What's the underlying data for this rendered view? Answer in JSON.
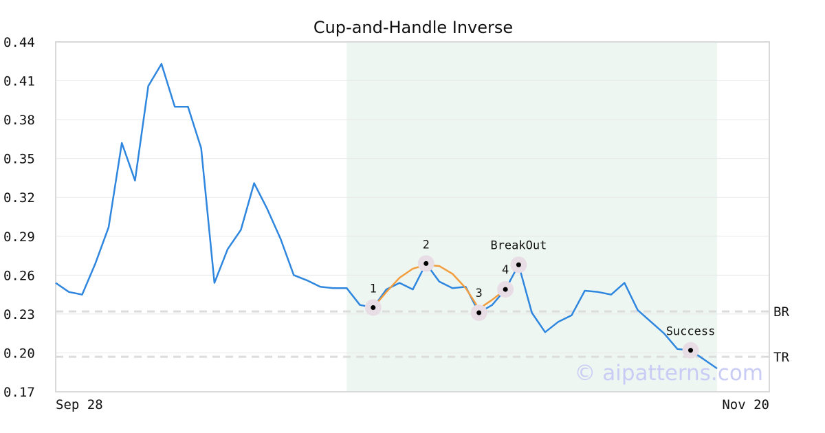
{
  "chart_data": {
    "type": "line",
    "title": "Cup-and-Handle Inverse",
    "xlabel": "",
    "ylabel": "",
    "ylim": [
      0.17,
      0.44
    ],
    "yticks": [
      "0.44",
      "0.41",
      "0.38",
      "0.35",
      "0.32",
      "0.29",
      "0.26",
      "0.23",
      "0.20",
      "0.17"
    ],
    "xtick_labels": [
      "Sep 28",
      "Nov 20"
    ],
    "grid": true,
    "series": [
      {
        "color": "#2e86de",
        "values": [
          0.254,
          0.247,
          0.245,
          0.269,
          0.297,
          0.362,
          0.333,
          0.406,
          0.423,
          0.39,
          0.39,
          0.358,
          0.254,
          0.28,
          0.295,
          0.331,
          0.311,
          0.288,
          0.26,
          0.256,
          0.251,
          0.25,
          0.25,
          0.237,
          0.235,
          0.249,
          0.254,
          0.249,
          0.269,
          0.255,
          0.25,
          0.251,
          0.231,
          0.237,
          0.249,
          0.268,
          0.231,
          0.216,
          0.224,
          0.229,
          0.248,
          0.247,
          0.245,
          0.254,
          0.233,
          0.224,
          0.215,
          0.203,
          0.202,
          0.195,
          0.188
        ]
      }
    ],
    "pattern": {
      "color": "#f39c3c",
      "points": [
        [
          24,
          0.235
        ],
        [
          25,
          0.247
        ],
        [
          26,
          0.258
        ],
        [
          27,
          0.265
        ],
        [
          28,
          0.268
        ],
        [
          29,
          0.267
        ],
        [
          30,
          0.261
        ],
        [
          31,
          0.25
        ],
        [
          32,
          0.234
        ],
        [
          33,
          0.241
        ],
        [
          34,
          0.249
        ]
      ]
    },
    "highlight_range": {
      "from_index": 22,
      "to_index": 50,
      "color": "#eef6f2"
    },
    "markers": [
      {
        "label": "1",
        "index": 24,
        "value": 0.235
      },
      {
        "label": "2",
        "index": 28,
        "value": 0.269
      },
      {
        "label": "3",
        "index": 32,
        "value": 0.231
      },
      {
        "label": "4",
        "index": 34,
        "value": 0.249
      },
      {
        "label": "BreakOut",
        "index": 35,
        "value": 0.268
      },
      {
        "label": "Success",
        "index": 48,
        "value": 0.202
      }
    ],
    "reference_lines": [
      {
        "label": "BR",
        "value": 0.232
      },
      {
        "label": "TR",
        "value": 0.197
      }
    ],
    "watermark": "© aipatterns.com"
  }
}
